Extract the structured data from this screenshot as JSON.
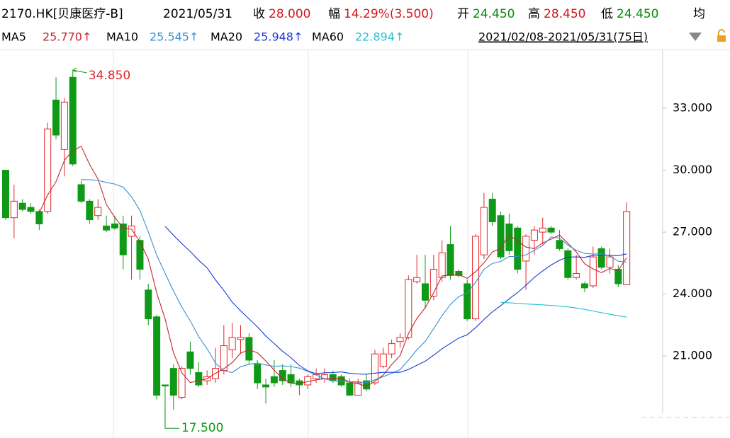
{
  "chart_data": {
    "type": "candlestick",
    "title": "2170.HK[贝康医疗-B]",
    "date": "2021/05/31",
    "stats": [
      {
        "label": "收",
        "value": "28.000",
        "color": "#d4161d"
      },
      {
        "label": "幅",
        "value": "14.29%(3.500)",
        "color": "#d4161d"
      },
      {
        "label": "开",
        "value": "24.450",
        "color": "#0a8a0a"
      },
      {
        "label": "高",
        "value": "28.450",
        "color": "#d4161d"
      },
      {
        "label": "低",
        "value": "24.450",
        "color": "#0a8a0a"
      },
      {
        "label": "均"
      }
    ],
    "range": "2021/02/08-2021/05/31(75日)",
    "max_label": "34.850",
    "min_label": "17.500",
    "up_color": "#e2262b",
    "down_color": "#0e9a16",
    "ylim": [
      17.2,
      35.4
    ],
    "yticks": [
      {
        "value": 21,
        "label": "21.000"
      },
      {
        "value": 24,
        "label": "24.000"
      },
      {
        "value": 27,
        "label": "27.000"
      },
      {
        "value": 30,
        "label": "30.000"
      },
      {
        "value": 33,
        "label": "33.000"
      }
    ],
    "open": [
      30.0,
      27.7,
      28.4,
      28.2,
      28.0,
      28.0,
      33.4,
      31.0,
      34.5,
      29.3,
      28.5,
      27.8,
      27.3,
      27.4,
      27.4,
      26.8,
      26.6,
      24.2,
      22.9,
      19.6,
      20.4,
      19.0,
      21.2,
      20.2,
      19.8,
      19.9,
      20.3,
      21.3,
      21.8,
      21.9,
      20.6,
      19.6,
      20.0,
      20.3,
      20.1,
      19.8,
      19.6,
      19.9,
      19.9,
      20.1,
      20.0,
      19.7,
      19.1,
      19.8,
      19.7,
      20.5,
      21.1,
      21.7,
      21.9,
      24.6,
      24.5,
      23.9,
      24.8,
      26.4,
      25.1,
      24.5,
      22.8,
      25.9,
      28.6,
      27.8,
      27.4,
      27.2,
      25.6,
      26.6,
      27.0,
      27.2,
      26.6,
      26.1,
      24.8,
      24.5,
      24.4,
      26.2,
      25.3,
      25.2,
      24.45
    ],
    "high": [
      30.0,
      29.3,
      28.6,
      28.4,
      28.1,
      32.3,
      34.5,
      33.5,
      34.85,
      29.5,
      28.6,
      28.6,
      27.8,
      27.8,
      27.8,
      27.8,
      26.8,
      24.5,
      23.0,
      19.6,
      20.6,
      20.5,
      21.7,
      20.7,
      20.3,
      21.4,
      22.5,
      22.6,
      22.5,
      22.1,
      20.8,
      19.9,
      20.8,
      20.6,
      20.6,
      19.9,
      20.1,
      20.4,
      20.4,
      20.3,
      20.1,
      19.9,
      19.9,
      20.1,
      21.3,
      21.4,
      21.8,
      22.1,
      24.9,
      25.9,
      25.9,
      25.9,
      26.6,
      27.3,
      25.2,
      24.7,
      26.9,
      28.9,
      28.9,
      28.0,
      27.9,
      27.3,
      26.9,
      27.3,
      27.7,
      27.3,
      27.1,
      26.2,
      25.9,
      24.6,
      26.3,
      26.3,
      26.2,
      25.4,
      28.45
    ],
    "low": [
      27.6,
      26.7,
      28.0,
      27.9,
      27.1,
      27.9,
      31.5,
      29.7,
      30.2,
      28.4,
      27.4,
      27.6,
      27.0,
      27.1,
      25.2,
      24.7,
      24.7,
      22.5,
      18.9,
      17.5,
      18.4,
      18.9,
      20.1,
      19.5,
      19.6,
      19.7,
      20.1,
      20.9,
      21.1,
      20.6,
      19.4,
      18.7,
      19.5,
      19.6,
      19.5,
      19.1,
      19.4,
      19.7,
      19.7,
      19.7,
      19.5,
      19.1,
      19.1,
      19.3,
      19.6,
      20.4,
      20.9,
      21.4,
      21.8,
      24.5,
      23.3,
      23.7,
      24.6,
      24.7,
      24.8,
      22.7,
      22.7,
      25.7,
      27.3,
      25.7,
      25.9,
      25.0,
      24.2,
      25.9,
      26.4,
      26.9,
      26.1,
      24.7,
      24.7,
      24.1,
      24.3,
      25.2,
      25.0,
      24.35,
      24.45
    ],
    "close": [
      27.7,
      28.5,
      28.1,
      28.0,
      27.4,
      32.0,
      31.7,
      33.3,
      30.3,
      28.5,
      27.6,
      28.2,
      27.1,
      27.2,
      25.9,
      27.3,
      25.2,
      22.8,
      19.1,
      19.55,
      19.1,
      20.4,
      20.4,
      19.6,
      20.0,
      20.4,
      21.5,
      21.9,
      21.9,
      20.8,
      19.7,
      19.5,
      19.7,
      19.8,
      19.7,
      19.6,
      20.0,
      20.1,
      20.1,
      19.8,
      19.6,
      19.1,
      19.7,
      19.4,
      21.1,
      21.1,
      21.6,
      21.9,
      24.7,
      24.8,
      23.7,
      25.2,
      26.0,
      24.9,
      24.9,
      22.8,
      26.8,
      28.2,
      27.5,
      25.8,
      26.1,
      25.2,
      26.8,
      27.1,
      27.2,
      27.0,
      26.2,
      24.8,
      25.0,
      24.3,
      25.8,
      25.3,
      25.8,
      24.5,
      28.0
    ],
    "series": [
      {
        "name": "MA5",
        "label": "25.770↑",
        "color": "#c4262c",
        "values": [
          null,
          null,
          null,
          null,
          27.94,
          28.8,
          29.44,
          30.48,
          30.94,
          31.16,
          30.28,
          29.58,
          28.34,
          27.72,
          27.2,
          27.14,
          26.54,
          25.68,
          24.06,
          22.79,
          21.15,
          20.19,
          19.71,
          19.81,
          19.9,
          20.16,
          20.38,
          20.68,
          21.14,
          21.3,
          21.16,
          20.76,
          20.32,
          19.9,
          19.68,
          19.66,
          19.76,
          19.84,
          19.9,
          19.92,
          19.92,
          19.74,
          19.66,
          19.52,
          19.78,
          20.08,
          20.58,
          21.02,
          22.08,
          22.82,
          23.34,
          24.06,
          24.88,
          24.92,
          24.94,
          24.76,
          25.08,
          25.52,
          26.04,
          26.22,
          26.88,
          26.56,
          26.28,
          26.2,
          26.48,
          26.66,
          26.86,
          26.46,
          26.04,
          25.46,
          25.22,
          25.04,
          25.24,
          25.14,
          25.77
        ]
      },
      {
        "name": "MA10",
        "label": "25.545↑",
        "color": "#3a8fcf",
        "values": [
          null,
          null,
          null,
          null,
          null,
          null,
          null,
          null,
          null,
          29.55,
          29.54,
          29.51,
          29.41,
          29.33,
          29.18,
          28.71,
          28.06,
          27.01,
          25.89,
          25.0,
          24.15,
          23.37,
          22.7,
          21.94,
          21.35,
          20.66,
          20.29,
          20.2,
          20.48,
          20.6,
          20.66,
          20.57,
          20.5,
          20.52,
          20.49,
          20.41,
          20.26,
          20.08,
          19.9,
          19.8,
          19.79,
          19.75,
          19.75,
          19.71,
          19.85,
          20.0,
          20.16,
          20.34,
          20.8,
          21.3,
          21.71,
          22.32,
          22.95,
          23.5,
          23.88,
          24.05,
          24.57,
          25.2,
          25.48,
          25.58,
          25.82,
          25.82,
          25.9,
          26.12,
          26.35,
          26.77,
          26.71,
          26.37,
          26.12,
          25.97,
          25.94,
          25.95,
          25.85,
          25.59,
          25.545
        ]
      },
      {
        "name": "MA20",
        "label": "25.948↑",
        "color": "#1a3ad6",
        "values": [
          null,
          null,
          null,
          null,
          null,
          null,
          null,
          null,
          null,
          null,
          null,
          null,
          null,
          null,
          null,
          null,
          null,
          null,
          null,
          27.28,
          26.85,
          26.44,
          26.06,
          25.64,
          25.27,
          24.69,
          24.18,
          23.61,
          23.19,
          22.8,
          22.41,
          21.97,
          21.6,
          21.23,
          20.92,
          20.54,
          20.28,
          20.14,
          20.19,
          20.2,
          20.23,
          20.16,
          20.13,
          20.12,
          20.17,
          20.21,
          20.21,
          20.21,
          20.35,
          20.55,
          20.75,
          21.04,
          21.35,
          21.61,
          21.87,
          22.03,
          22.37,
          22.77,
          23.14,
          23.44,
          23.77,
          24.07,
          24.43,
          24.81,
          25.12,
          25.41,
          25.64,
          25.79,
          25.8,
          25.78,
          25.88,
          25.89,
          25.88,
          25.86,
          25.948
        ]
      },
      {
        "name": "MA60",
        "label": "22.894↑",
        "color": "#26bfd2",
        "values": [
          null,
          null,
          null,
          null,
          null,
          null,
          null,
          null,
          null,
          null,
          null,
          null,
          null,
          null,
          null,
          null,
          null,
          null,
          null,
          null,
          null,
          null,
          null,
          null,
          null,
          null,
          null,
          null,
          null,
          null,
          null,
          null,
          null,
          null,
          null,
          null,
          null,
          null,
          null,
          null,
          null,
          null,
          null,
          null,
          null,
          null,
          null,
          null,
          null,
          null,
          null,
          null,
          null,
          null,
          null,
          null,
          null,
          null,
          null,
          23.6,
          23.58,
          23.55,
          23.52,
          23.5,
          23.48,
          23.45,
          23.42,
          23.38,
          23.33,
          23.26,
          23.18,
          23.1,
          23.02,
          22.95,
          22.894
        ]
      }
    ]
  }
}
